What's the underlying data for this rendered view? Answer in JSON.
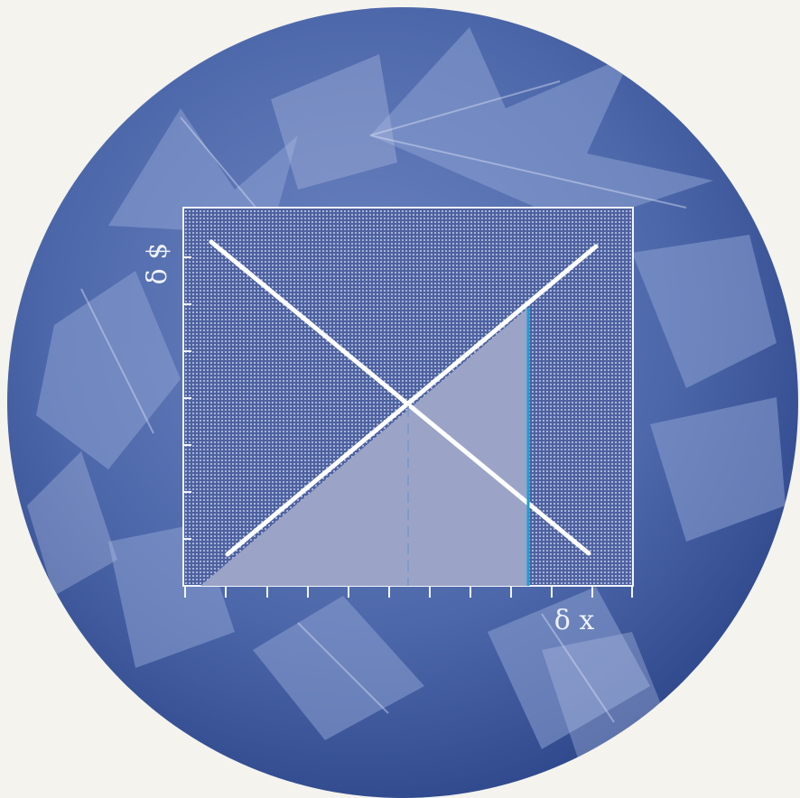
{
  "axes": {
    "x_label": "δ x",
    "y_label": "δ $"
  },
  "colors": {
    "page_background": "#f4f3ee",
    "disc_dark": "#2f4b8f",
    "disc_mid": "#5a73b4",
    "disc_light": "#9aaad8",
    "plot_fill": "#56689f",
    "shaded_region": "#9ba4c6",
    "line_color": "#ffffff",
    "cutoff_line": "#1e9fd2"
  },
  "decoration": {
    "background": "leaf-photo"
  }
}
